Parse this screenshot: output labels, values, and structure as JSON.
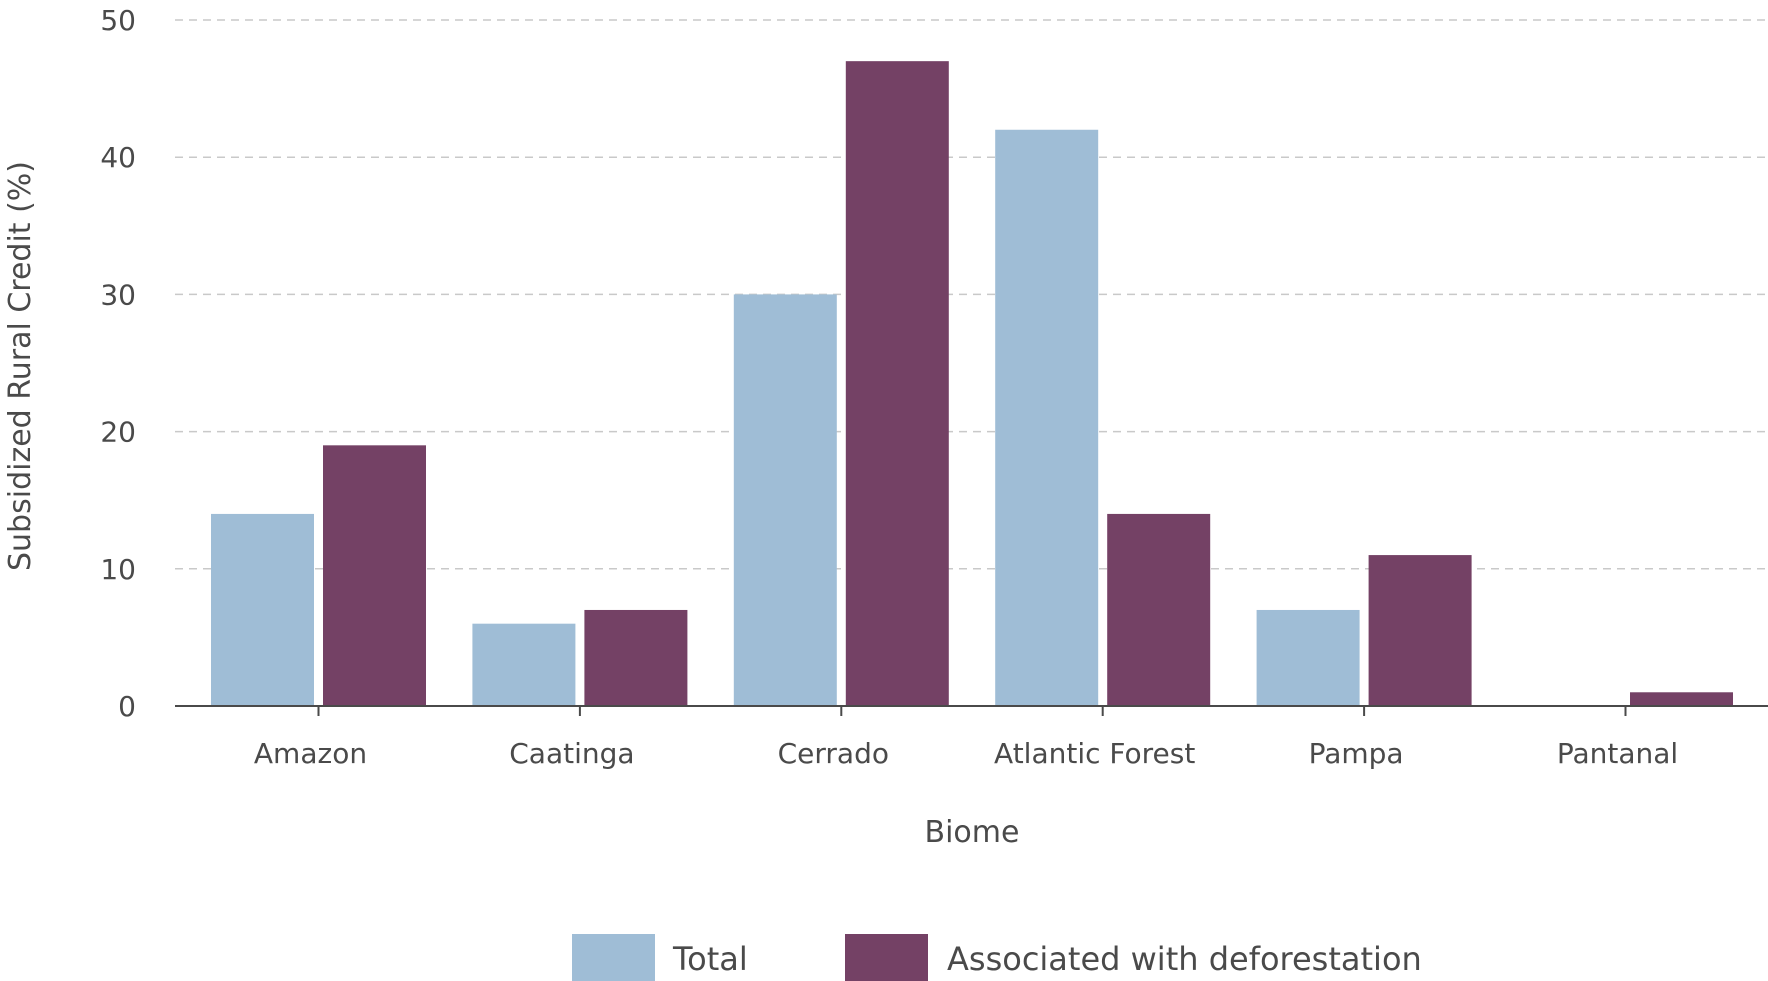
{
  "chart_data": {
    "type": "bar",
    "xlabel": "Biome",
    "ylabel": "Subsidized Rural Credit (%)",
    "categories": [
      "Amazon",
      "Caatinga",
      "Cerrado",
      "Atlantic Forest",
      "Pampa",
      "Pantanal"
    ],
    "series": [
      {
        "name": "Total",
        "values": [
          14,
          6,
          30,
          42,
          7,
          0
        ],
        "color": "#9fbdd6"
      },
      {
        "name": "Associated with deforestation",
        "values": [
          19,
          7,
          47,
          14,
          11,
          1
        ],
        "color": "#744165"
      }
    ],
    "ylim": [
      0,
      50
    ],
    "yticks": [
      "0",
      "10",
      "20",
      "30",
      "40",
      "50"
    ],
    "grid": true,
    "legend_position": "bottom"
  }
}
